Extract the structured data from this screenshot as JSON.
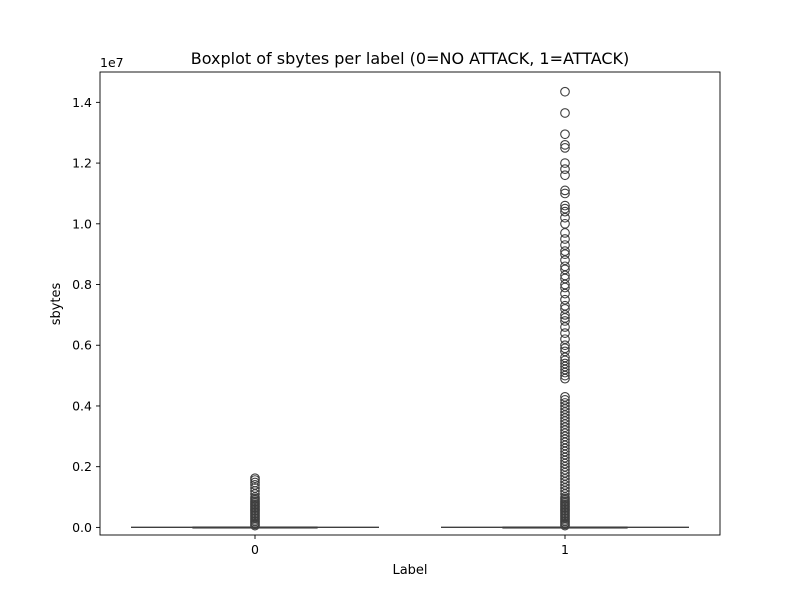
{
  "chart_data": {
    "type": "boxplot",
    "title": "Boxplot of sbytes per label (0=NO ATTACK, 1=ATTACK)",
    "xlabel": "Label",
    "ylabel": "sbytes",
    "y_offset_label": "1e7",
    "categories": [
      "0",
      "1"
    ],
    "ylim": [
      -250000,
      15000000
    ],
    "yticks": [
      0,
      2000000,
      4000000,
      6000000,
      8000000,
      10000000,
      12000000,
      14000000
    ],
    "ytick_labels": [
      "0.0",
      "0.2",
      "0.4",
      "0.6",
      "0.8",
      "1.0",
      "1.2",
      "1.4"
    ],
    "boxes": [
      {
        "category": "0",
        "q1": 200,
        "median": 1000,
        "q3": 1500,
        "whisker_low": 0,
        "whisker_high": 4000,
        "outliers": [
          60000,
          100000,
          150000,
          200000,
          250000,
          300000,
          350000,
          400000,
          450000,
          500000,
          550000,
          600000,
          650000,
          700000,
          750000,
          800000,
          850000,
          900000,
          950000,
          1000000,
          1100000,
          1200000,
          1300000,
          1400000,
          1480000,
          1560000,
          1620000
        ]
      },
      {
        "category": "1",
        "q1": 200,
        "median": 500,
        "q3": 1000,
        "whisker_low": 0,
        "whisker_high": 2000,
        "outliers": [
          60000,
          100000,
          150000,
          200000,
          250000,
          300000,
          350000,
          400000,
          450000,
          500000,
          550000,
          600000,
          650000,
          700000,
          750000,
          800000,
          850000,
          900000,
          950000,
          1000000,
          1100000,
          1200000,
          1300000,
          1400000,
          1500000,
          1600000,
          1700000,
          1800000,
          1900000,
          2000000,
          2100000,
          2200000,
          2300000,
          2400000,
          2500000,
          2600000,
          2700000,
          2800000,
          2900000,
          3000000,
          3100000,
          3200000,
          3300000,
          3400000,
          3500000,
          3600000,
          3700000,
          3800000,
          3900000,
          4000000,
          4100000,
          4200000,
          4300000,
          4900000,
          5000000,
          5100000,
          5200000,
          5300000,
          5400000,
          5500000,
          5600000,
          5800000,
          5900000,
          6000000,
          6200000,
          6400000,
          6600000,
          6800000,
          6900000,
          7000000,
          7200000,
          7300000,
          7500000,
          7700000,
          7900000,
          8000000,
          8200000,
          8300000,
          8500000,
          8600000,
          8800000,
          9000000,
          9100000,
          9300000,
          9500000,
          9700000,
          10000000,
          10200000,
          10400000,
          10500000,
          10600000,
          11000000,
          11100000,
          11600000,
          11800000,
          12000000,
          12500000,
          12600000,
          12950000,
          13650000,
          14350000
        ]
      }
    ],
    "colors": {
      "stroke": "#3f3f3f",
      "box_fill": "#ffffff"
    }
  }
}
